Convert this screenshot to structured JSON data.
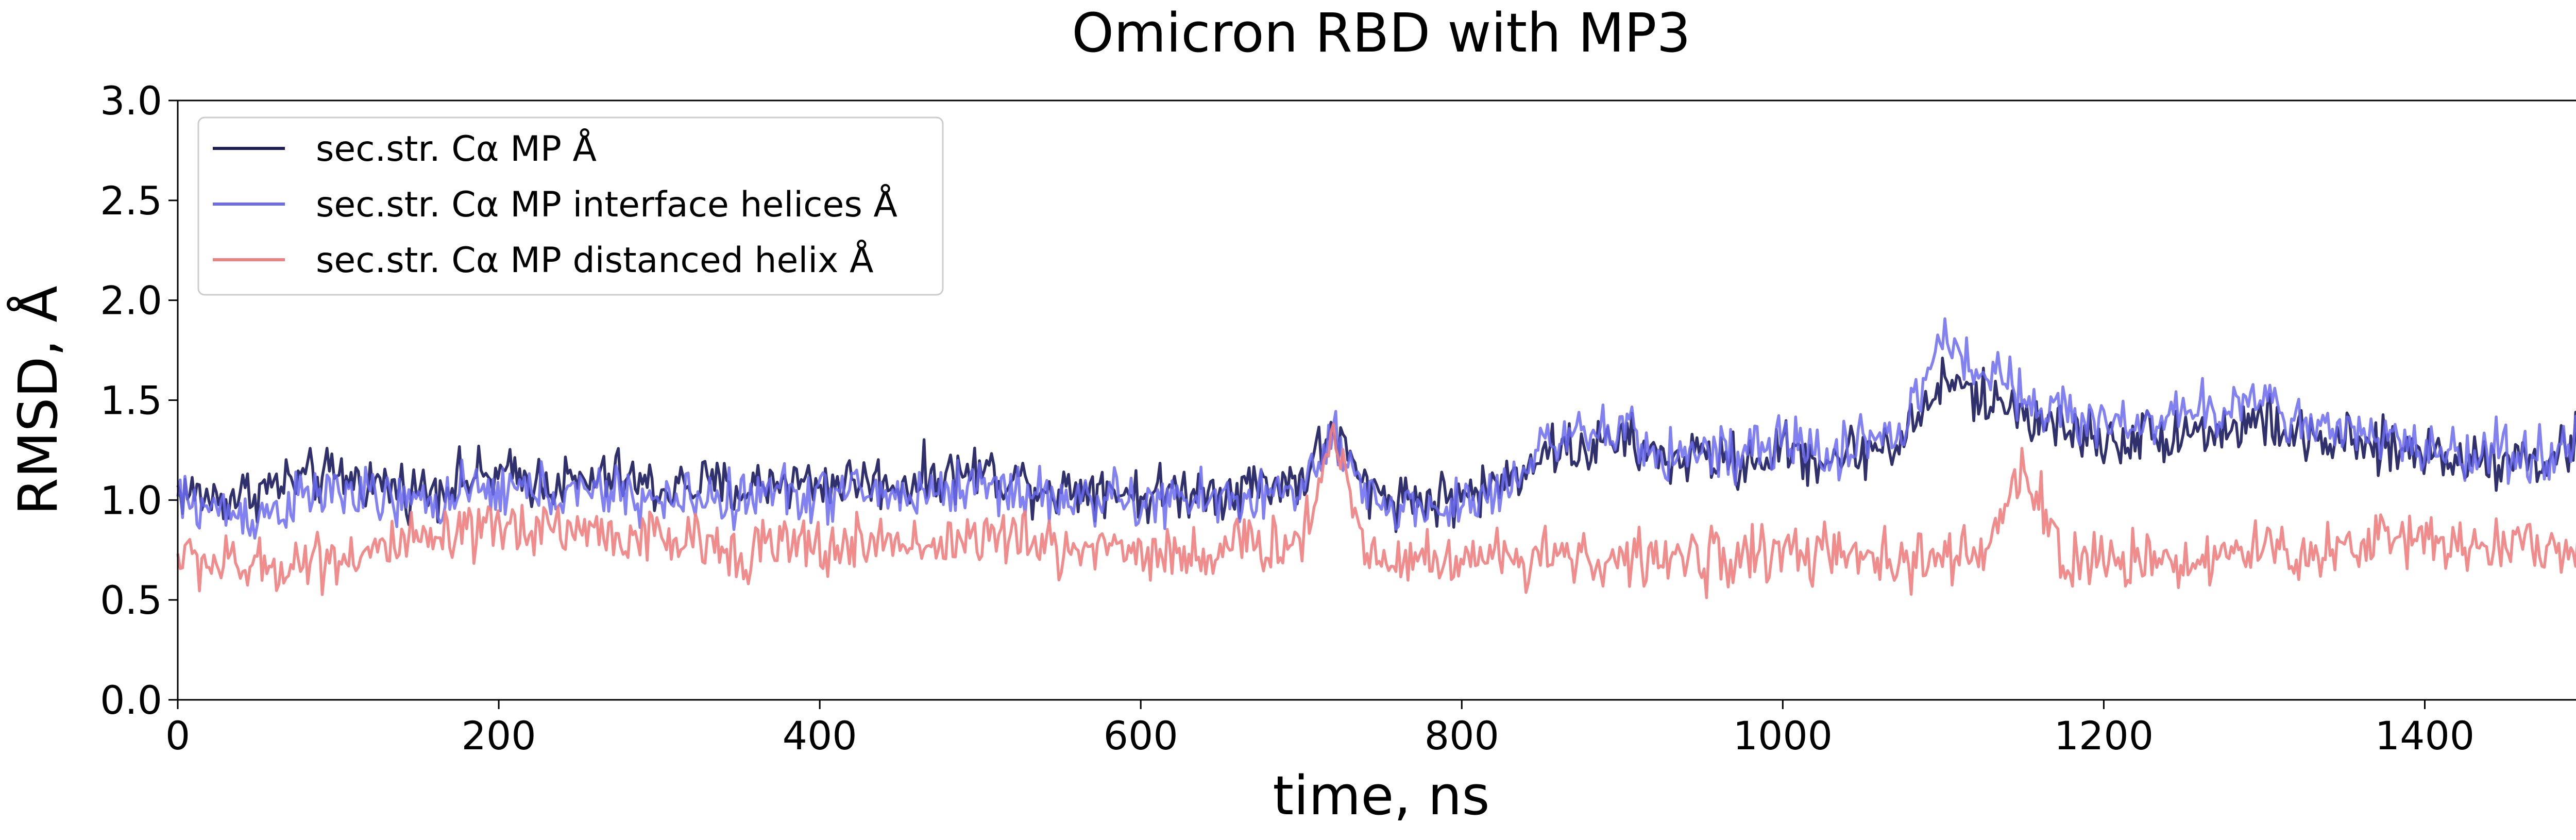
{
  "chart_data": {
    "type": "line",
    "title": "Omicron RBD with MP3",
    "xlabel": "time, ns",
    "ylabel": "RMSD, Å",
    "xlim": [
      0,
      1500
    ],
    "ylim": [
      0,
      3.0
    ],
    "xticks": [
      0,
      200,
      400,
      600,
      800,
      1000,
      1200,
      1400
    ],
    "yticks": [
      0.0,
      0.5,
      1.0,
      1.5,
      2.0,
      2.5,
      3.0
    ],
    "xtick_labels": [
      "0",
      "200",
      "400",
      "600",
      "800",
      "1000",
      "1200",
      "1400"
    ],
    "ytick_labels": [
      "0.0",
      "0.5",
      "1.0",
      "1.5",
      "2.0",
      "2.5",
      "3.0"
    ],
    "grid": false,
    "legend_position": "top-left",
    "series": [
      {
        "name": "sec.str. Cα MP Å",
        "color": "#1a1a5c",
        "x": [
          0,
          25,
          50,
          75,
          100,
          125,
          150,
          175,
          200,
          225,
          250,
          275,
          300,
          325,
          350,
          375,
          400,
          425,
          450,
          475,
          500,
          525,
          550,
          575,
          600,
          625,
          650,
          675,
          700,
          720,
          740,
          760,
          780,
          800,
          825,
          850,
          875,
          900,
          925,
          950,
          975,
          1000,
          1025,
          1050,
          1075,
          1100,
          1125,
          1150,
          1175,
          1200,
          1225,
          1250,
          1275,
          1300,
          1325,
          1350,
          1375,
          1400,
          1425,
          1450,
          1475,
          1500
        ],
        "values": [
          1.05,
          1.0,
          1.05,
          1.1,
          1.12,
          1.08,
          1.05,
          1.1,
          1.12,
          1.1,
          1.08,
          1.12,
          1.05,
          1.08,
          1.05,
          1.1,
          1.08,
          1.1,
          1.08,
          1.12,
          1.15,
          1.1,
          1.05,
          1.08,
          1.02,
          1.05,
          1.05,
          1.08,
          1.1,
          1.35,
          1.05,
          1.02,
          1.0,
          1.02,
          1.08,
          1.25,
          1.25,
          1.3,
          1.2,
          1.22,
          1.18,
          1.25,
          1.2,
          1.25,
          1.3,
          1.6,
          1.5,
          1.45,
          1.35,
          1.3,
          1.32,
          1.35,
          1.35,
          1.4,
          1.3,
          1.28,
          1.25,
          1.25,
          1.2,
          1.22,
          1.2,
          1.3
        ]
      },
      {
        "name": "sec.str. Cα MP interface helices Å",
        "color": "#6b6bf0",
        "x": [
          0,
          25,
          50,
          75,
          100,
          125,
          150,
          175,
          200,
          225,
          250,
          275,
          300,
          325,
          350,
          375,
          400,
          425,
          450,
          475,
          500,
          525,
          550,
          575,
          600,
          625,
          650,
          675,
          700,
          720,
          740,
          760,
          780,
          800,
          825,
          850,
          875,
          900,
          925,
          950,
          975,
          1000,
          1025,
          1050,
          1075,
          1100,
          1125,
          1150,
          1175,
          1200,
          1225,
          1250,
          1275,
          1300,
          1325,
          1350,
          1375,
          1400,
          1425,
          1450,
          1475,
          1500
        ],
        "values": [
          1.0,
          0.95,
          0.92,
          1.0,
          1.05,
          1.0,
          0.98,
          1.02,
          1.05,
          1.05,
          1.02,
          1.05,
          0.98,
          1.02,
          1.0,
          1.05,
          1.02,
          1.05,
          1.02,
          1.05,
          1.08,
          1.05,
          1.0,
          1.02,
          0.98,
          1.0,
          1.0,
          1.02,
          1.05,
          1.3,
          1.0,
          0.98,
          0.95,
          0.98,
          1.05,
          1.3,
          1.3,
          1.35,
          1.22,
          1.25,
          1.2,
          1.3,
          1.22,
          1.3,
          1.35,
          1.8,
          1.65,
          1.55,
          1.42,
          1.38,
          1.4,
          1.42,
          1.45,
          1.55,
          1.35,
          1.32,
          1.3,
          1.28,
          1.22,
          1.25,
          1.22,
          1.35
        ]
      },
      {
        "name": "sec.str. Cα MP distanced helix Å",
        "color": "#f08080",
        "x": [
          0,
          25,
          50,
          75,
          100,
          125,
          150,
          175,
          200,
          225,
          250,
          275,
          300,
          325,
          350,
          375,
          400,
          425,
          450,
          475,
          500,
          525,
          550,
          575,
          600,
          625,
          650,
          675,
          700,
          720,
          740,
          760,
          780,
          800,
          825,
          850,
          875,
          900,
          925,
          950,
          975,
          1000,
          1025,
          1050,
          1075,
          1100,
          1125,
          1150,
          1175,
          1200,
          1225,
          1250,
          1275,
          1300,
          1325,
          1350,
          1375,
          1400,
          1425,
          1450,
          1475,
          1500
        ],
        "values": [
          0.72,
          0.68,
          0.65,
          0.7,
          0.72,
          0.75,
          0.78,
          0.8,
          0.85,
          0.88,
          0.85,
          0.82,
          0.8,
          0.78,
          0.75,
          0.78,
          0.75,
          0.78,
          0.8,
          0.78,
          0.82,
          0.8,
          0.75,
          0.78,
          0.75,
          0.72,
          0.75,
          0.78,
          0.78,
          1.35,
          0.75,
          0.72,
          0.7,
          0.72,
          0.7,
          0.75,
          0.72,
          0.68,
          0.72,
          0.7,
          0.72,
          0.75,
          0.72,
          0.7,
          0.68,
          0.72,
          0.7,
          1.2,
          0.68,
          0.7,
          0.72,
          0.7,
          0.72,
          0.75,
          0.72,
          0.78,
          0.8,
          0.82,
          0.78,
          0.8,
          0.75,
          0.78
        ]
      }
    ]
  }
}
